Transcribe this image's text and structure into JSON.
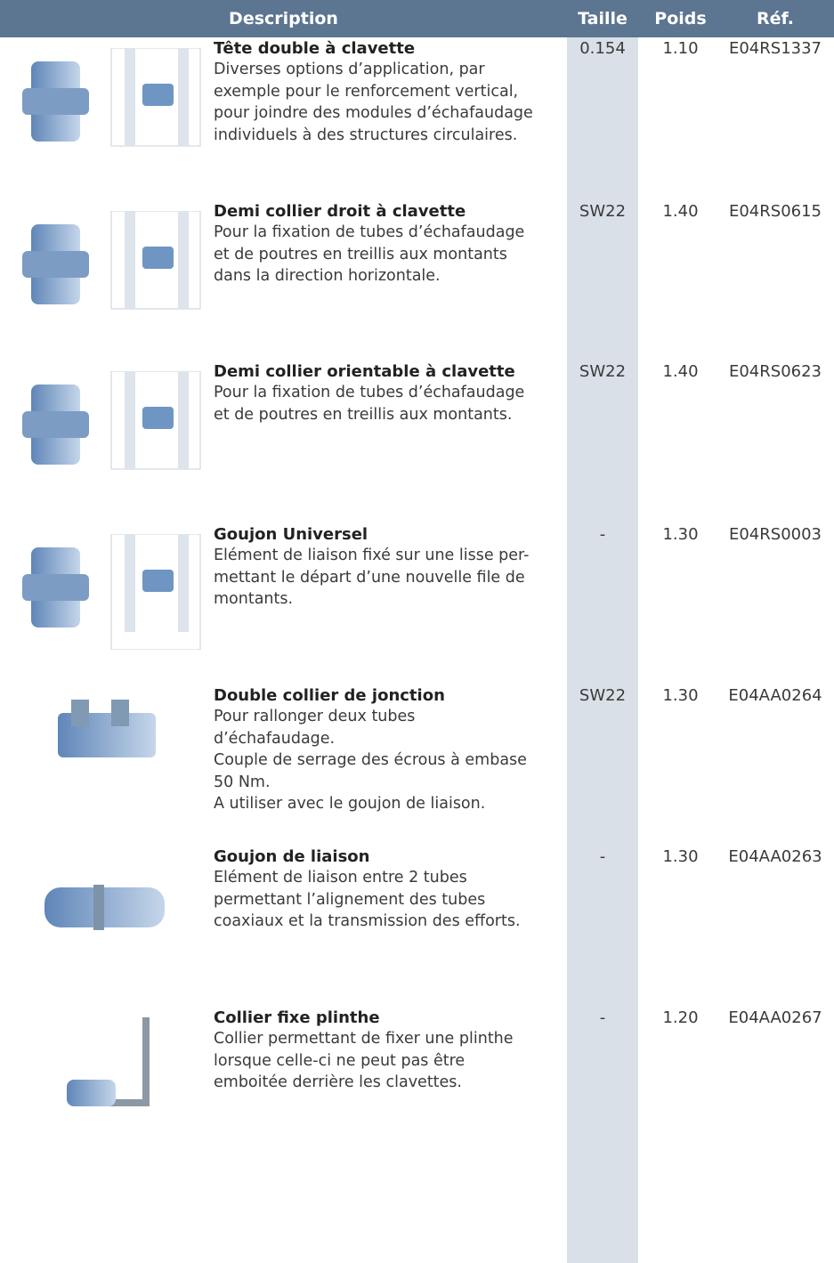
{
  "header": {
    "columns": [
      "Description",
      "Taille",
      "Poids",
      "Réf."
    ]
  },
  "rows": [
    {
      "title": "Tête double à clavette",
      "description": [
        "Diverses options d’application, par",
        "exemple pour le renforcement vertical,",
        "pour joindre des modules d’échafaudage",
        "individuels à des structures circulaires."
      ],
      "taille": "0.154",
      "poids": "1.10",
      "ref": "E04RS1337"
    },
    {
      "title": "Demi collier droit à clavette",
      "description": [
        "Pour la fixation de tubes d’échafaudage",
        "et de poutres en treillis aux montants",
        "dans la direction horizontale."
      ],
      "taille": "SW22",
      "poids": "1.40",
      "ref": "E04RS0615"
    },
    {
      "title": "Demi collier orientable à clavette",
      "description": [
        "Pour la fixation de tubes d’échafaudage",
        "et de poutres en treillis aux montants."
      ],
      "taille": "SW22",
      "poids": "1.40",
      "ref": "E04RS0623"
    },
    {
      "title": "Goujon Universel",
      "description": [
        "Elément de liaison fixé sur une lisse per-",
        "mettant le départ d’une nouvelle file de",
        "montants."
      ],
      "taille": "-",
      "poids": "1.30",
      "ref": "E04RS0003"
    },
    {
      "title": "Double collier de jonction",
      "description": [
        "Pour rallonger deux tubes",
        "d’échafaudage.",
        "Couple de serrage des écrous à embase",
        "50 Nm.",
        "A utiliser avec le goujon de liaison."
      ],
      "taille": "SW22",
      "poids": "1.30",
      "ref": "E04AA0264"
    },
    {
      "title": "Goujon de liaison",
      "description": [
        "Elément de liaison entre 2 tubes",
        "permettant l’alignement des tubes",
        "coaxiaux et la transmission des efforts."
      ],
      "taille": "-",
      "poids": "1.30",
      "ref": "E04AA0263"
    },
    {
      "title": "Collier fixe plinthe",
      "description": [
        "Collier permettant de fixer une plinthe",
        "lorsque celle-ci ne peut pas être",
        "emboitée derrière les clavettes."
      ],
      "taille": "-",
      "poids": "1.20",
      "ref": "E04AA0267"
    }
  ]
}
